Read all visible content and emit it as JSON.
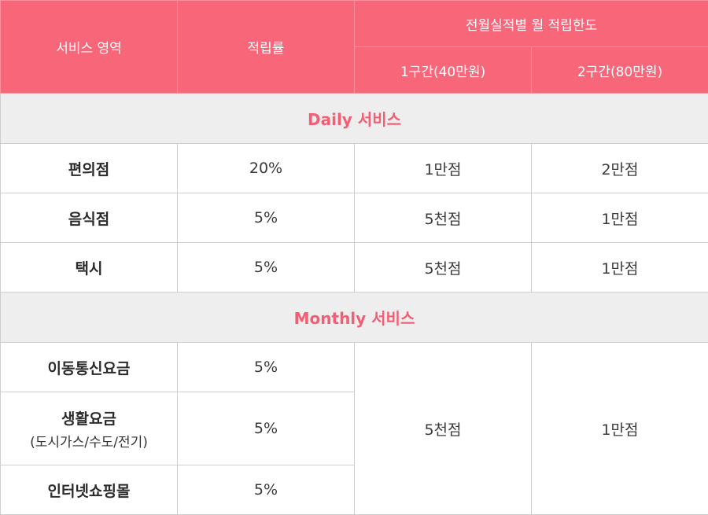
{
  "header": {
    "service_area": "서비스 영역",
    "rate": "적립률",
    "monthly_limit": "전월실적별 월 적립한도",
    "tier1": "1구간(40만원)",
    "tier2": "2구간(80만원)"
  },
  "sections": [
    {
      "title": "Daily 서비스",
      "rows": [
        {
          "name": "편의점",
          "rate": "20%",
          "tier1": "1만점",
          "tier2": "2만점"
        },
        {
          "name": "음식점",
          "rate": "5%",
          "tier1": "5천점",
          "tier2": "1만점"
        },
        {
          "name": "택시",
          "rate": "5%",
          "tier1": "5천점",
          "tier2": "1만점"
        }
      ]
    },
    {
      "title": "Monthly 서비스",
      "tier1": "5천점",
      "tier2": "1만점",
      "rows": [
        {
          "name": "이동통신요금",
          "rate": "5%"
        },
        {
          "name": "생활요금",
          "sub": "(도시가스/수도/전기)",
          "rate": "5%"
        },
        {
          "name": "인터넷쇼핑몰",
          "rate": "5%"
        }
      ]
    }
  ]
}
